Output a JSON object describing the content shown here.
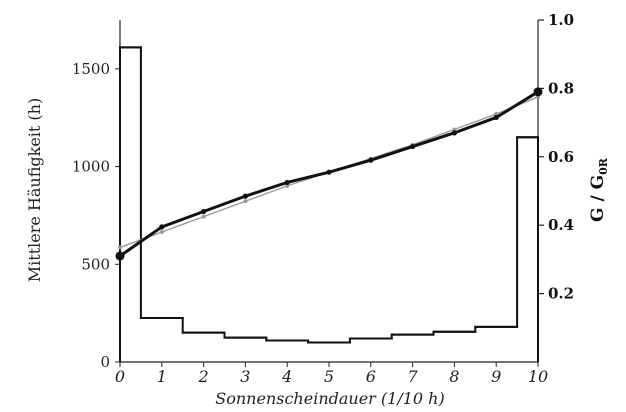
{
  "chart_data": [
    {
      "type": "bar",
      "xlabel": "Sonnenscheindauer (1/10 h)",
      "ylabel": "Mittlere Häufigkeit (h)",
      "x_ticks": [
        "0",
        "1",
        "2",
        "3",
        "4",
        "5",
        "6",
        "7",
        "8",
        "9",
        "10"
      ],
      "y_ticks": [
        "0",
        "500",
        "1000",
        "1500"
      ],
      "xlim": [
        0,
        10
      ],
      "ylim": [
        0,
        1750
      ],
      "bins": [
        [
          0,
          0.5
        ],
        [
          0.5,
          1.5
        ],
        [
          1.5,
          2.5
        ],
        [
          2.5,
          3.5
        ],
        [
          3.5,
          4.5
        ],
        [
          4.5,
          5.5
        ],
        [
          5.5,
          6.5
        ],
        [
          6.5,
          7.5
        ],
        [
          7.5,
          8.5
        ],
        [
          8.5,
          9.5
        ],
        [
          9.5,
          10
        ]
      ],
      "values": [
        1610,
        225,
        150,
        125,
        110,
        100,
        120,
        140,
        155,
        180,
        1150
      ]
    },
    {
      "type": "line",
      "ylabel": "G / G",
      "ylabel_subscript": "0R",
      "y_ticks": [
        "0.2",
        "0.4",
        "0.6",
        "0.8",
        "1.0"
      ],
      "ylim": [
        0,
        1.0
      ],
      "series": [
        {
          "style": "thick-dots",
          "x": [
            0,
            1,
            2,
            3,
            4,
            5,
            6,
            7,
            8,
            9,
            10
          ],
          "y": [
            0.31,
            0.395,
            0.44,
            0.485,
            0.525,
            0.555,
            0.59,
            0.63,
            0.67,
            0.715,
            0.79
          ]
        },
        {
          "style": "thin-gray",
          "x": [
            0,
            1,
            2,
            3,
            4,
            5,
            6,
            7,
            8,
            9,
            10
          ],
          "y": [
            0.335,
            0.38,
            0.425,
            0.47,
            0.515,
            0.555,
            0.595,
            0.635,
            0.68,
            0.725,
            0.775
          ]
        }
      ]
    }
  ],
  "colors": {
    "histogram": "#111111",
    "thick_line": "#111111",
    "thin_line": "#9a9a9a",
    "axes": "#222222"
  }
}
